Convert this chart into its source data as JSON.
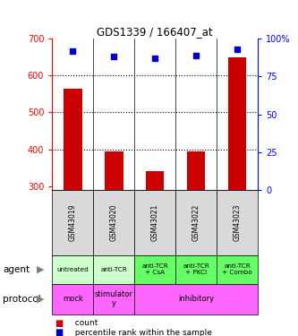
{
  "title": "GDS1339 / 166407_at",
  "samples": [
    "GSM43019",
    "GSM43020",
    "GSM43021",
    "GSM43022",
    "GSM43023"
  ],
  "counts": [
    565,
    395,
    340,
    395,
    650
  ],
  "percentiles": [
    92,
    88,
    87,
    89,
    93
  ],
  "ylim_left": [
    290,
    700
  ],
  "ylim_right": [
    0,
    100
  ],
  "yticks_left": [
    300,
    400,
    500,
    600,
    700
  ],
  "yticks_right": [
    0,
    25,
    50,
    75,
    100
  ],
  "bar_color": "#cc0000",
  "dot_color": "#0000cc",
  "agent_labels": [
    "untreated",
    "anti-TCR",
    "anti-TCR\n+ CsA",
    "anti-TCR\n+ PKCi",
    "anti-TCR\n+ Combo"
  ],
  "agent_colors": [
    "#ccffcc",
    "#ccffcc",
    "#66ff66",
    "#66ff66",
    "#66ff66"
  ],
  "protocol_spans": [
    [
      0,
      1,
      "mock"
    ],
    [
      1,
      2,
      "stimulator\ny"
    ],
    [
      2,
      5,
      "inhibitory"
    ]
  ],
  "protocol_color": "#ff66ff",
  "background_color": "#ffffff",
  "sample_bg": "#d9d9d9",
  "gridline_ticks": [
    400,
    500,
    600
  ],
  "legend_count_label": "  count",
  "legend_pct_label": "  percentile rank within the sample",
  "left_label": "agent",
  "protocol_label": "protocol"
}
